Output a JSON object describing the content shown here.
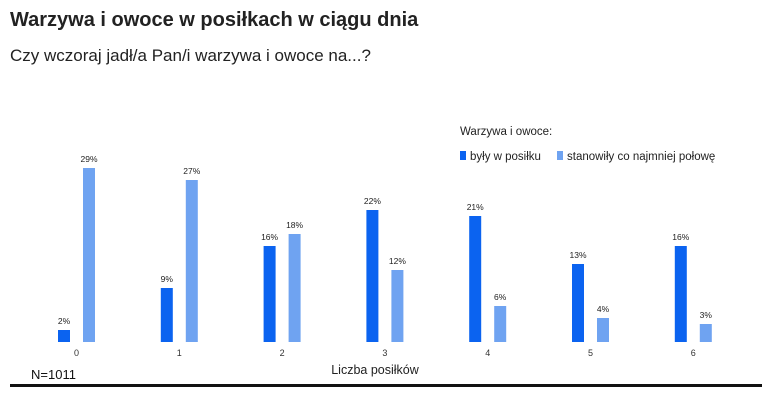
{
  "title": "Warzywa i owoce w posiłkach w ciągu dnia",
  "subtitle": "Czy wczoraj jadł/a Pan/i warzywa i owoce na...?",
  "footnote": "N=1011",
  "colors": {
    "series_1": "#0b63f0",
    "series_2": "#6fa3f1"
  },
  "chart_data": {
    "type": "bar",
    "title": "Warzywa i owoce w posiłkach w ciągu dnia",
    "subtitle": "Czy wczoraj jadł/a Pan/i warzywa i owoce na...?",
    "xlabel": "Liczba posiłków",
    "ylabel": "",
    "ylim": [
      0,
      30
    ],
    "grid": false,
    "legend_title": "Warzywa i owoce:",
    "legend_position": "top-right",
    "categories": [
      "0",
      "1",
      "2",
      "3",
      "4",
      "5",
      "6"
    ],
    "series": [
      {
        "name": "były w posiłku",
        "values": [
          2,
          9,
          16,
          22,
          21,
          13,
          16
        ]
      },
      {
        "name": "stanowiły co najmniej połowę",
        "values": [
          29,
          27,
          18,
          12,
          6,
          4,
          3
        ]
      }
    ],
    "value_suffix": "%"
  }
}
